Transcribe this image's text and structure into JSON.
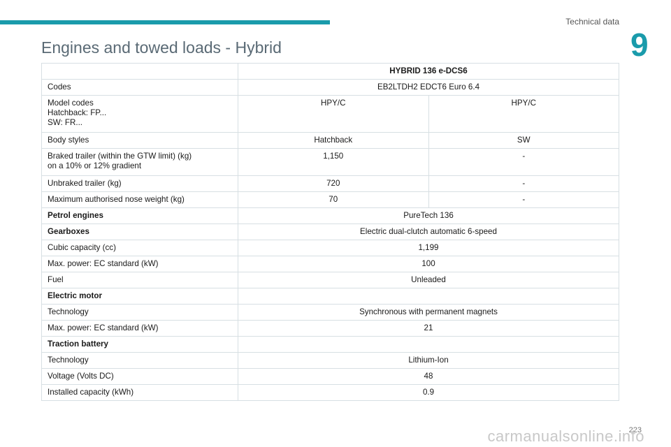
{
  "header": {
    "section_name": "Technical data",
    "chapter_number": "9"
  },
  "page": {
    "title": "Engines and towed loads - Hybrid",
    "number": "223"
  },
  "table": {
    "header": "HYBRID 136 e-DCS6",
    "codes": {
      "label": "Codes",
      "value": "EB2LTDH2 EDCT6 Euro 6.4"
    },
    "model_codes": {
      "label_lines": [
        "Model codes",
        "Hatchback: FP...",
        "SW: FR..."
      ],
      "hatchback": "HPY/C",
      "sw": "HPY/C"
    },
    "body_styles": {
      "label": "Body styles",
      "hatchback": "Hatchback",
      "sw": "SW"
    },
    "braked_trailer": {
      "label_lines": [
        "Braked trailer (within the GTW limit) (kg)",
        "on a 10% or 12% gradient"
      ],
      "hatchback": "1,150",
      "sw": "-"
    },
    "unbraked_trailer": {
      "label": "Unbraked trailer (kg)",
      "hatchback": "720",
      "sw": "-"
    },
    "nose_weight": {
      "label": "Maximum authorised nose weight (kg)",
      "hatchback": "70",
      "sw": "-"
    },
    "petrol_engines": {
      "label": "Petrol engines",
      "value": "PureTech 136"
    },
    "gearboxes": {
      "label": "Gearboxes",
      "value": "Electric dual-clutch automatic 6-speed"
    },
    "cubic_capacity": {
      "label": "Cubic capacity (cc)",
      "value": "1,199"
    },
    "max_power_engine": {
      "label": "Max. power: EC standard (kW)",
      "value": "100"
    },
    "fuel": {
      "label": "Fuel",
      "value": "Unleaded"
    },
    "electric_motor": {
      "label": "Electric motor",
      "value": ""
    },
    "motor_technology": {
      "label": "Technology",
      "value": "Synchronous with permanent magnets"
    },
    "max_power_motor": {
      "label": "Max. power: EC standard (kW)",
      "value": "21"
    },
    "traction_battery": {
      "label": "Traction battery",
      "value": ""
    },
    "battery_technology": {
      "label": "Technology",
      "value": "Lithium-Ion"
    },
    "voltage": {
      "label": "Voltage (Volts DC)",
      "value": "48"
    },
    "installed_capacity": {
      "label": "Installed capacity (kWh)",
      "value": "0.9"
    }
  },
  "watermark": "carmanualsonline.info",
  "colors": {
    "accent": "#1a9bab",
    "title": "#5a6a75",
    "border": "#d7dfe3"
  }
}
